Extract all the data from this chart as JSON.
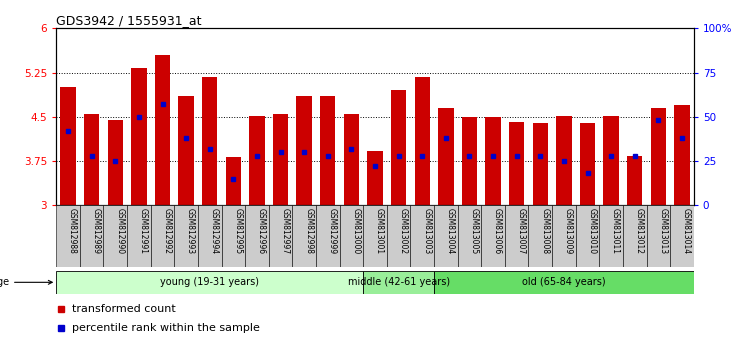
{
  "title": "GDS3942 / 1555931_at",
  "samples": [
    "GSM812988",
    "GSM812989",
    "GSM812990",
    "GSM812991",
    "GSM812992",
    "GSM812993",
    "GSM812994",
    "GSM812995",
    "GSM812996",
    "GSM812997",
    "GSM812998",
    "GSM812999",
    "GSM813000",
    "GSM813001",
    "GSM813002",
    "GSM813003",
    "GSM813004",
    "GSM813005",
    "GSM813006",
    "GSM813007",
    "GSM813008",
    "GSM813009",
    "GSM813010",
    "GSM813011",
    "GSM813012",
    "GSM813013",
    "GSM813014"
  ],
  "bar_values": [
    5.0,
    4.55,
    4.45,
    5.33,
    5.55,
    4.85,
    5.18,
    3.82,
    4.52,
    4.55,
    4.85,
    4.85,
    4.55,
    3.92,
    4.95,
    5.18,
    4.65,
    4.5,
    4.5,
    4.42,
    4.4,
    4.52,
    4.4,
    4.52,
    3.83,
    4.65,
    4.7
  ],
  "percentile_pct": [
    42,
    28,
    25,
    50,
    57,
    38,
    32,
    15,
    28,
    30,
    30,
    28,
    32,
    22,
    28,
    28,
    38,
    28,
    28,
    28,
    28,
    25,
    18,
    28,
    28,
    48,
    38
  ],
  "groups": [
    {
      "label": "young (19-31 years)",
      "start": 0,
      "end": 13,
      "color": "#ccffcc"
    },
    {
      "label": "middle (42-61 years)",
      "start": 13,
      "end": 16,
      "color": "#99ee99"
    },
    {
      "label": "old (65-84 years)",
      "start": 16,
      "end": 27,
      "color": "#66dd66"
    }
  ],
  "ylim": [
    3.0,
    6.0
  ],
  "y_ticks": [
    3.0,
    3.75,
    4.5,
    5.25,
    6.0
  ],
  "y_tick_labels": [
    "3",
    "3.75",
    "4.5",
    "5.25",
    "6"
  ],
  "right_y_ticks": [
    0,
    25,
    50,
    75,
    100
  ],
  "right_y_tick_labels": [
    "0",
    "25",
    "50",
    "75",
    "100%"
  ],
  "bar_color": "#cc0000",
  "percentile_color": "#0000cc",
  "bg_color": "#ffffff",
  "xtick_bg_color": "#cccccc"
}
